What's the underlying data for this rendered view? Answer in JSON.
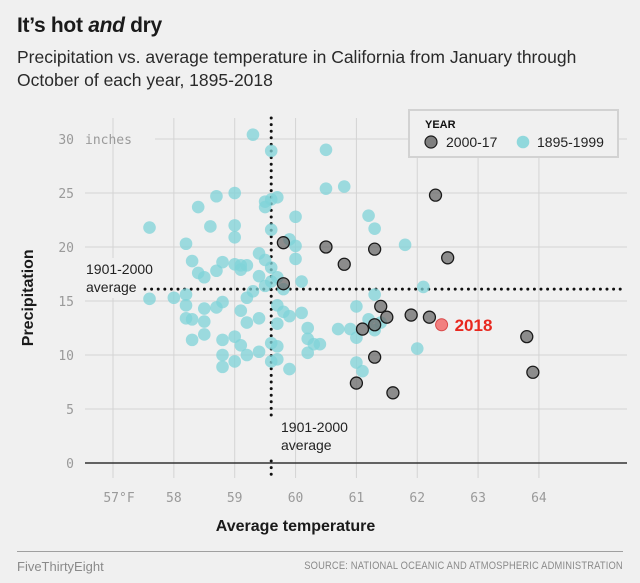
{
  "header": {
    "title_part1": "It’s hot ",
    "title_emph": "and",
    "title_part2": " dry",
    "subtitle": "Precipitation vs. average temperature in California from January through October of each year, 1895-2018"
  },
  "footer": {
    "brand": "FiveThirtyEight",
    "source": "SOURCE: NATIONAL OCEANIC AND ATMOSPHERIC ADMINISTRATION"
  },
  "colors": {
    "early": "#7fd3d8",
    "recent": "#6b6b6b",
    "highlight": "#f26b6b",
    "highlight_text": "#e8281f",
    "grid": "#d4d4d4"
  },
  "chart_data": {
    "type": "scatter",
    "title": "It’s hot and dry",
    "xlabel": "Average temperature",
    "ylabel": "Precipitation",
    "xlim": [
      56.75,
      64.4
    ],
    "ylim": [
      0,
      31
    ],
    "x_ticks": [
      57,
      58,
      59,
      60,
      61,
      62,
      63,
      64
    ],
    "x_tick_labels": [
      "57°F",
      "58",
      "59",
      "60",
      "61",
      "62",
      "63",
      "64"
    ],
    "y_ticks": [
      0,
      5,
      10,
      15,
      20,
      25,
      30
    ],
    "y_tick_labels": [
      "0",
      "5",
      "10",
      "15",
      "20",
      "25",
      "30"
    ],
    "y_unit_label": "inches",
    "grid": true,
    "legend": {
      "title": "YEAR",
      "position": "top-right",
      "entries": [
        {
          "label": "2000-17",
          "series": "recent"
        },
        {
          "label": "1895-1999",
          "series": "early"
        }
      ]
    },
    "reference_lines": {
      "avg_temperature": 59.6,
      "avg_precipitation": 16.1,
      "x_label": [
        "1901-2000",
        "average"
      ],
      "y_label": [
        "1901-2000",
        "average"
      ]
    },
    "highlight": {
      "label": "2018",
      "x": 62.4,
      "y": 12.8
    },
    "series": [
      {
        "name": "1895-1999",
        "key": "early",
        "points": [
          [
            59.3,
            30.4
          ],
          [
            59.6,
            28.9
          ],
          [
            60.5,
            29.0
          ],
          [
            60.5,
            25.4
          ],
          [
            60.8,
            25.6
          ],
          [
            58.4,
            23.7
          ],
          [
            58.7,
            24.7
          ],
          [
            59.0,
            22.0
          ],
          [
            59.0,
            25.0
          ],
          [
            59.7,
            24.6
          ],
          [
            59.6,
            24.4
          ],
          [
            59.5,
            24.2
          ],
          [
            59.5,
            23.7
          ],
          [
            57.6,
            21.8
          ],
          [
            58.2,
            20.3
          ],
          [
            58.6,
            21.9
          ],
          [
            59.0,
            20.9
          ],
          [
            59.6,
            21.6
          ],
          [
            59.9,
            20.7
          ],
          [
            60.0,
            22.8
          ],
          [
            61.2,
            22.9
          ],
          [
            61.3,
            21.7
          ],
          [
            61.8,
            20.2
          ],
          [
            60.0,
            20.1
          ],
          [
            60.0,
            18.9
          ],
          [
            58.3,
            18.7
          ],
          [
            58.4,
            17.6
          ],
          [
            58.5,
            17.2
          ],
          [
            58.7,
            17.8
          ],
          [
            58.8,
            18.6
          ],
          [
            59.0,
            18.4
          ],
          [
            59.1,
            18.3
          ],
          [
            59.2,
            18.3
          ],
          [
            59.1,
            17.9
          ],
          [
            59.4,
            19.4
          ],
          [
            59.5,
            18.8
          ],
          [
            59.6,
            18.1
          ],
          [
            59.4,
            17.3
          ],
          [
            59.5,
            16.4
          ],
          [
            59.6,
            16.8
          ],
          [
            59.7,
            17.2
          ],
          [
            59.8,
            16.1
          ],
          [
            60.1,
            16.8
          ],
          [
            59.7,
            14.6
          ],
          [
            59.8,
            14.0
          ],
          [
            59.9,
            13.6
          ],
          [
            57.6,
            15.2
          ],
          [
            58.0,
            15.3
          ],
          [
            58.2,
            15.6
          ],
          [
            58.2,
            14.6
          ],
          [
            58.5,
            14.3
          ],
          [
            58.2,
            13.4
          ],
          [
            58.3,
            13.3
          ],
          [
            58.5,
            13.1
          ],
          [
            58.7,
            14.4
          ],
          [
            58.8,
            14.9
          ],
          [
            59.2,
            15.3
          ],
          [
            59.3,
            15.9
          ],
          [
            59.1,
            14.1
          ],
          [
            59.2,
            13.0
          ],
          [
            59.4,
            13.4
          ],
          [
            59.0,
            11.7
          ],
          [
            58.5,
            11.9
          ],
          [
            58.3,
            11.4
          ],
          [
            58.8,
            11.4
          ],
          [
            58.8,
            10.0
          ],
          [
            58.8,
            8.9
          ],
          [
            59.0,
            9.4
          ],
          [
            59.1,
            10.9
          ],
          [
            59.2,
            10.0
          ],
          [
            59.4,
            10.3
          ],
          [
            59.7,
            12.9
          ],
          [
            59.6,
            11.1
          ],
          [
            59.7,
            10.8
          ],
          [
            59.7,
            9.6
          ],
          [
            59.9,
            8.7
          ],
          [
            60.2,
            12.5
          ],
          [
            60.2,
            11.5
          ],
          [
            60.3,
            11.0
          ],
          [
            60.4,
            11.0
          ],
          [
            60.2,
            10.2
          ],
          [
            60.7,
            12.4
          ],
          [
            60.9,
            12.4
          ],
          [
            61.0,
            14.5
          ],
          [
            61.0,
            11.6
          ],
          [
            61.0,
            9.3
          ],
          [
            61.2,
            13.3
          ],
          [
            61.3,
            15.6
          ],
          [
            61.3,
            12.3
          ],
          [
            61.4,
            13.0
          ],
          [
            62.1,
            16.3
          ],
          [
            62.0,
            10.6
          ],
          [
            61.1,
            8.5
          ],
          [
            60.1,
            13.9
          ],
          [
            59.6,
            9.4
          ]
        ]
      },
      {
        "name": "2000-17",
        "key": "recent",
        "points": [
          [
            59.8,
            20.4
          ],
          [
            59.8,
            16.6
          ],
          [
            60.5,
            20.0
          ],
          [
            60.8,
            18.4
          ],
          [
            61.3,
            19.8
          ],
          [
            62.3,
            24.8
          ],
          [
            62.5,
            19.0
          ],
          [
            61.4,
            14.5
          ],
          [
            61.5,
            13.5
          ],
          [
            61.3,
            12.8
          ],
          [
            61.1,
            12.4
          ],
          [
            61.9,
            13.7
          ],
          [
            62.2,
            13.5
          ],
          [
            61.0,
            7.4
          ],
          [
            61.3,
            9.8
          ],
          [
            61.6,
            6.5
          ],
          [
            63.8,
            11.7
          ],
          [
            63.9,
            8.4
          ]
        ]
      }
    ]
  }
}
